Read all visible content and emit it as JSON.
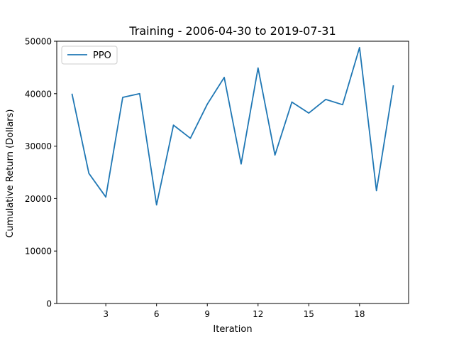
{
  "chart_data": {
    "type": "line",
    "title": "Training - 2006-04-30 to 2019-07-31",
    "xlabel": "Iteration",
    "ylabel": "Cumulative Return (Dollars)",
    "xlim": [
      0.1,
      20.9
    ],
    "ylim": [
      0,
      50000
    ],
    "xticks": [
      3,
      6,
      9,
      12,
      15,
      18
    ],
    "xtick_labels": [
      "3",
      "6",
      "9",
      "12",
      "15",
      "18"
    ],
    "yticks": [
      0,
      10000,
      20000,
      30000,
      40000,
      50000
    ],
    "ytick_labels": [
      "0",
      "10000",
      "20000",
      "30000",
      "40000",
      "50000"
    ],
    "grid": false,
    "legend": {
      "position": "top-left",
      "entries": [
        "PPO"
      ]
    },
    "series": [
      {
        "name": "PPO",
        "color": "#1f77b4",
        "x": [
          1,
          2,
          3,
          4,
          5,
          6,
          7,
          8,
          9,
          10,
          11,
          12,
          13,
          14,
          15,
          16,
          17,
          18,
          19,
          20
        ],
        "values": [
          40000,
          24800,
          20300,
          39300,
          40000,
          18800,
          34000,
          31500,
          38000,
          43100,
          26600,
          44900,
          28300,
          38400,
          36300,
          38900,
          37900,
          48800,
          21500,
          41600
        ]
      }
    ]
  }
}
